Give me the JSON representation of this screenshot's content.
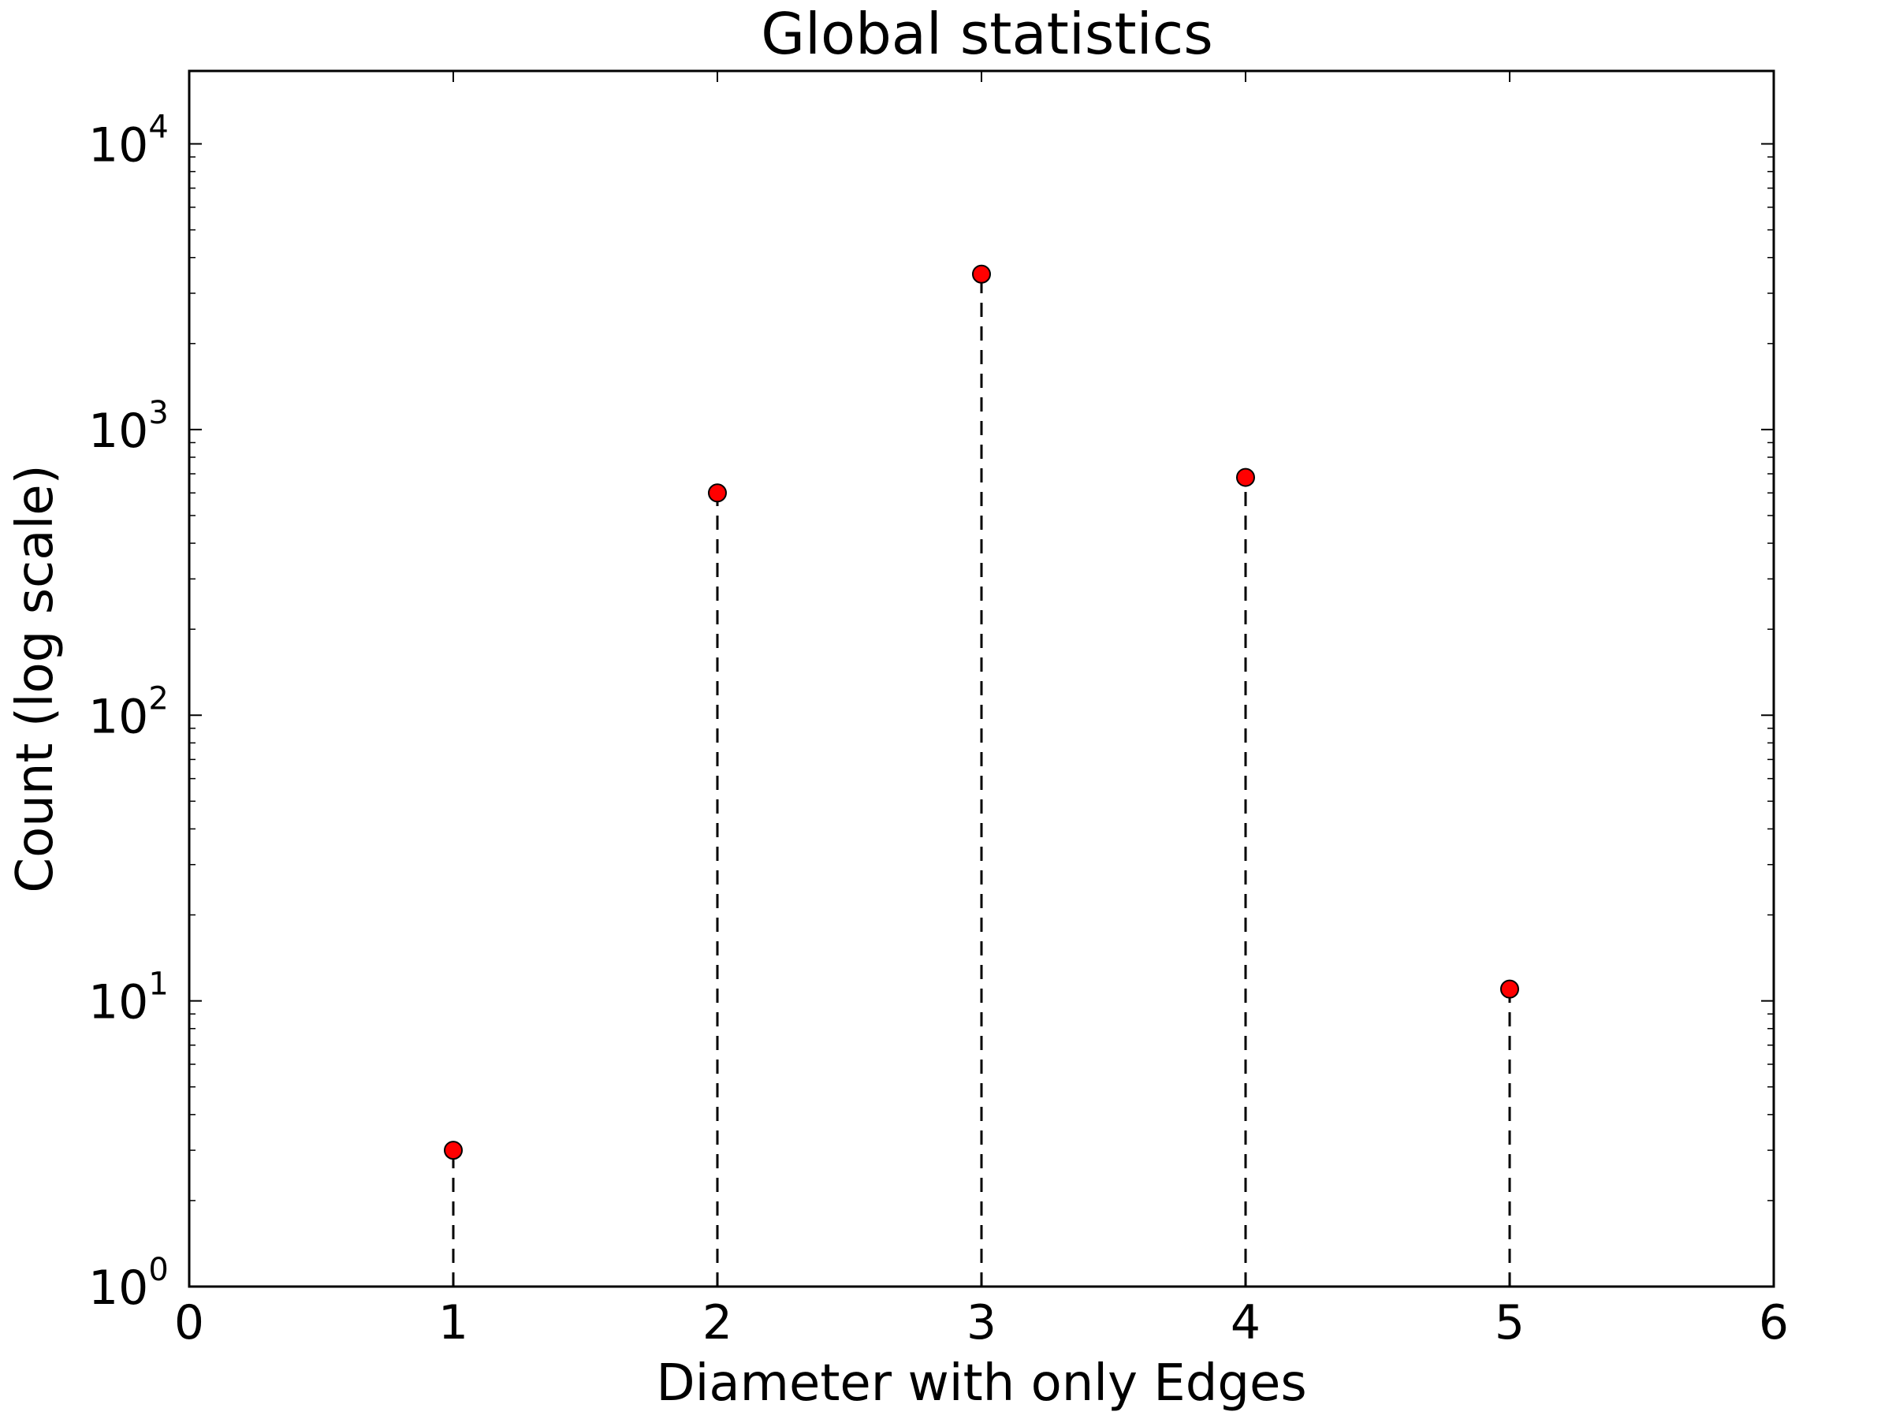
{
  "chart_data": {
    "type": "stem",
    "title": "Global statistics",
    "xlabel": "Diameter with only Edges",
    "ylabel": "Count (log scale)",
    "x": [
      1,
      2,
      3,
      4,
      5
    ],
    "y": [
      3,
      600,
      3500,
      680,
      11
    ],
    "xlim": [
      0,
      6
    ],
    "ylim": [
      1,
      18000
    ],
    "yscale": "log",
    "xticks": [
      {
        "value": 0,
        "label": "0"
      },
      {
        "value": 1,
        "label": "1"
      },
      {
        "value": 2,
        "label": "2"
      },
      {
        "value": 3,
        "label": "3"
      },
      {
        "value": 4,
        "label": "4"
      },
      {
        "value": 5,
        "label": "5"
      },
      {
        "value": 6,
        "label": "6"
      }
    ],
    "yticks": [
      {
        "value": 1,
        "base": "10",
        "exp": "0"
      },
      {
        "value": 10,
        "base": "10",
        "exp": "1"
      },
      {
        "value": 100,
        "base": "10",
        "exp": "2"
      },
      {
        "value": 1000,
        "base": "10",
        "exp": "3"
      },
      {
        "value": 10000,
        "base": "10",
        "exp": "4"
      }
    ],
    "grid": false,
    "marker_color": "#ff0000",
    "stem_color": "#000000",
    "stem_style": "dashed"
  }
}
